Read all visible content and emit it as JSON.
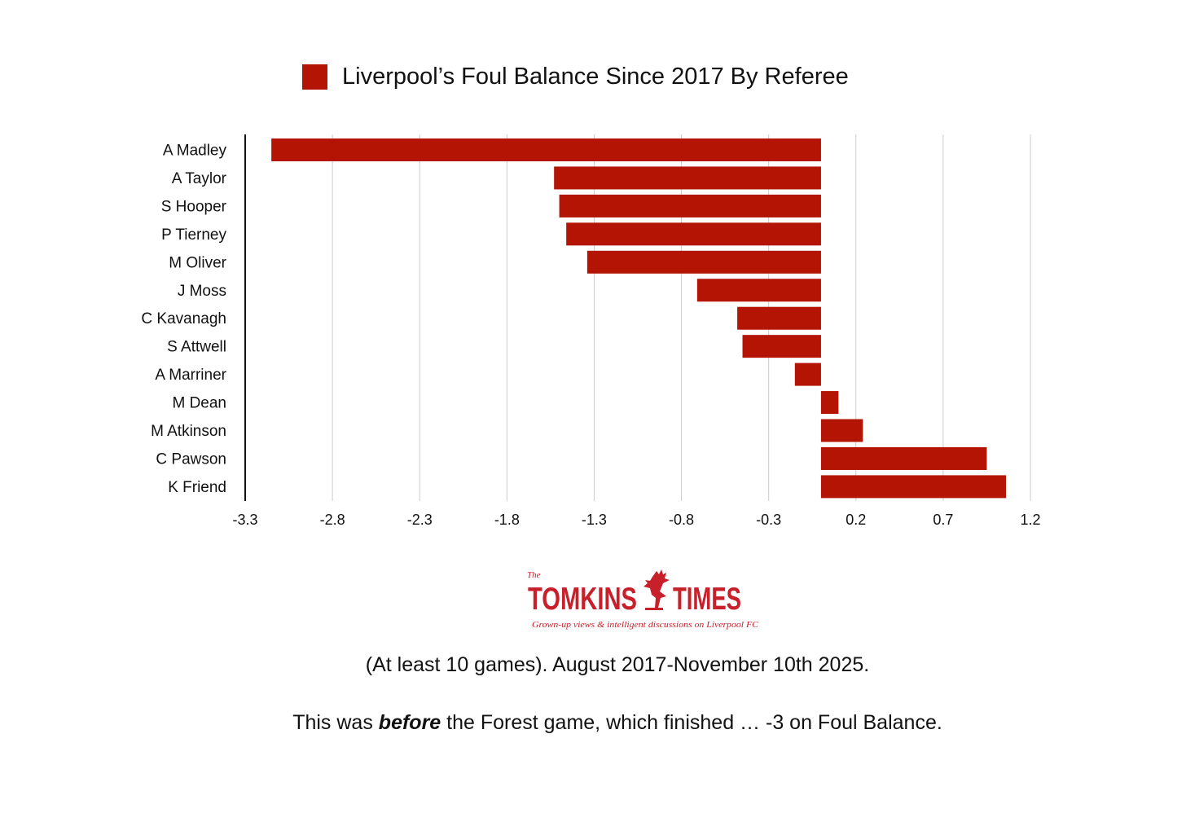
{
  "chart_data": {
    "type": "bar",
    "orientation": "horizontal",
    "title": "Liverpool’s Foul Balance Since 2017 By Referee",
    "categories": [
      "A Madley",
      "A Taylor",
      "S Hooper",
      "P Tierney",
      "M Oliver",
      "J Moss",
      "C Kavanagh",
      "S Attwell",
      "A Marriner",
      "M Dean",
      "M Atkinson",
      "C Pawson",
      "K Friend"
    ],
    "series": [
      {
        "name": "Liverpool’s Foul Balance Since 2017 By Referee",
        "values": [
          -3.15,
          -1.53,
          -1.5,
          -1.46,
          -1.34,
          -0.71,
          -0.48,
          -0.45,
          -0.15,
          0.1,
          0.24,
          0.95,
          1.06
        ]
      }
    ],
    "xlim": [
      -3.3,
      1.2
    ],
    "xticks": [
      "-3.3",
      "-2.8",
      "-2.3",
      "-1.8",
      "-1.3",
      "-0.8",
      "-0.3",
      "0.2",
      "0.7",
      "1.2"
    ],
    "grid": "vertical",
    "legend": "top",
    "bar_color": "#b31403",
    "gridline_color": "#cccccc"
  },
  "logo": {
    "small": "The",
    "name_left": "TOMKINS",
    "name_right": "TIMES",
    "tagline": "Grown-up views & intelligent discussions on Liverpool FC",
    "color": "#c8202b"
  },
  "notes": {
    "line1": "(At least 10 games). August 2017-November 10th 2025.",
    "line2_before": "This was ",
    "line2_bold": "before",
    "line2_after": " the Forest game, which finished … -3 on Foul Balance."
  }
}
